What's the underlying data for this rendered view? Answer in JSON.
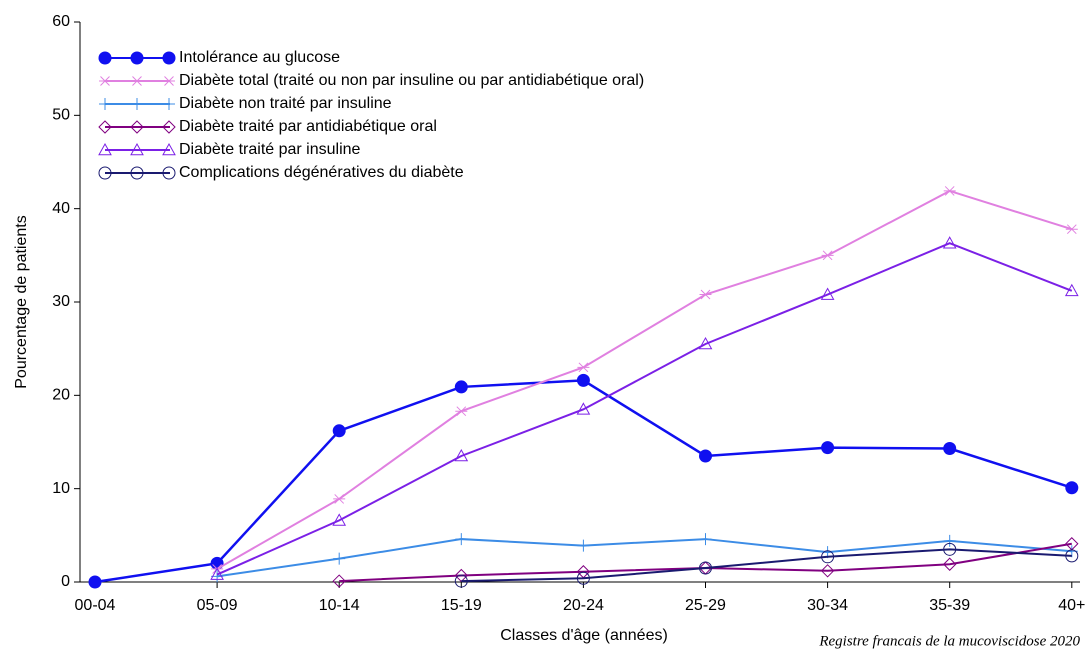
{
  "chart_data": {
    "type": "line",
    "x_label": "Classes d'âge (années)",
    "y_label": "Pourcentage de patients",
    "source": "Registre francais de la mucoviscidose 2020",
    "categories": [
      "00-04",
      "05-09",
      "10-14",
      "15-19",
      "20-24",
      "25-29",
      "30-34",
      "35-39",
      "40+"
    ],
    "ylim": [
      0,
      60
    ],
    "yticks": [
      0,
      10,
      20,
      30,
      40,
      50,
      60
    ],
    "legend": "top-left",
    "series": [
      {
        "name": "Intolérance au glucose",
        "color": "#1010f0",
        "marker": "filled-circle",
        "values": [
          0,
          2,
          16.2,
          20.9,
          21.6,
          13.5,
          14.4,
          14.3,
          10.1
        ]
      },
      {
        "name": "Diabète total (traité ou non par insuline ou par antidiabétique oral)",
        "color": "#e080e0",
        "marker": "star",
        "values": [
          null,
          1.4,
          8.9,
          18.3,
          23,
          30.8,
          35,
          41.9,
          37.8
        ]
      },
      {
        "name": "Diabète non traité par insuline",
        "color": "#3c8ce6",
        "marker": "plus",
        "values": [
          null,
          0.6,
          2.5,
          4.6,
          3.9,
          4.6,
          3.2,
          4.4,
          3.3
        ]
      },
      {
        "name": "Diabète traité par antidiabétique oral",
        "color": "#800080",
        "marker": "diamond",
        "values": [
          null,
          null,
          0.1,
          0.7,
          1.1,
          1.5,
          1.2,
          1.9,
          4.1
        ]
      },
      {
        "name": "Diabète traité par insuline",
        "color": "#7b20e6",
        "marker": "triangle",
        "values": [
          null,
          0.8,
          6.6,
          13.5,
          18.5,
          25.5,
          30.8,
          36.3,
          31.2
        ]
      },
      {
        "name": "Complications dégénératives du diabète",
        "color": "#1a1a70",
        "marker": "circle",
        "values": [
          null,
          null,
          null,
          0.1,
          0.4,
          1.5,
          2.7,
          3.5,
          2.8
        ]
      }
    ]
  }
}
